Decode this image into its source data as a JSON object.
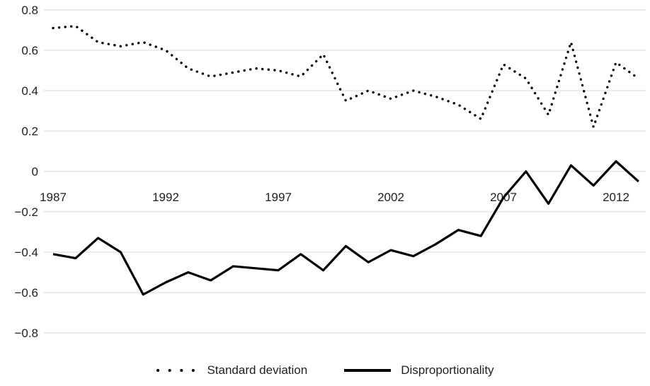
{
  "chart_data": {
    "type": "line",
    "title": "",
    "xlabel": "",
    "ylabel": "",
    "x": [
      1987,
      1988,
      1989,
      1990,
      1991,
      1992,
      1993,
      1994,
      1995,
      1996,
      1997,
      1998,
      1999,
      2000,
      2001,
      2002,
      2003,
      2004,
      2005,
      2006,
      2007,
      2008,
      2009,
      2010,
      2011,
      2012,
      2013
    ],
    "series": [
      {
        "name": "Standard deviation",
        "style": "dotted",
        "values": [
          0.71,
          0.72,
          0.64,
          0.62,
          0.64,
          0.6,
          0.51,
          0.47,
          0.49,
          0.51,
          0.5,
          0.47,
          0.58,
          0.35,
          0.4,
          0.36,
          0.4,
          0.37,
          0.33,
          0.26,
          0.53,
          0.46,
          0.28,
          0.64,
          0.22,
          0.54,
          0.46
        ]
      },
      {
        "name": "Disproportionality",
        "style": "solid",
        "values": [
          -0.41,
          -0.43,
          -0.33,
          -0.4,
          -0.61,
          -0.55,
          -0.5,
          -0.54,
          -0.47,
          -0.48,
          -0.49,
          -0.41,
          -0.49,
          -0.37,
          -0.45,
          -0.39,
          -0.42,
          -0.36,
          -0.29,
          -0.32,
          -0.13,
          0.0,
          -0.16,
          0.03,
          -0.07,
          0.05,
          -0.05
        ]
      }
    ],
    "ylim": [
      -0.8,
      0.8
    ],
    "yticks": [
      0.8,
      0.6,
      0.4,
      0.2,
      0,
      -0.2,
      -0.4,
      -0.6,
      -0.8
    ],
    "ytick_labels": [
      "0.8",
      "0.6",
      "0.4",
      "0.2",
      "0",
      "−0.2",
      "−0.4",
      "−0.6",
      "−0.8"
    ],
    "xticks": [
      1987,
      1992,
      1997,
      2002,
      2007,
      2012
    ],
    "grid": true,
    "legend_position": "bottom",
    "colors": {
      "line": "#000000",
      "grid": "#d9d9d9",
      "text": "#1f1f1f"
    }
  }
}
